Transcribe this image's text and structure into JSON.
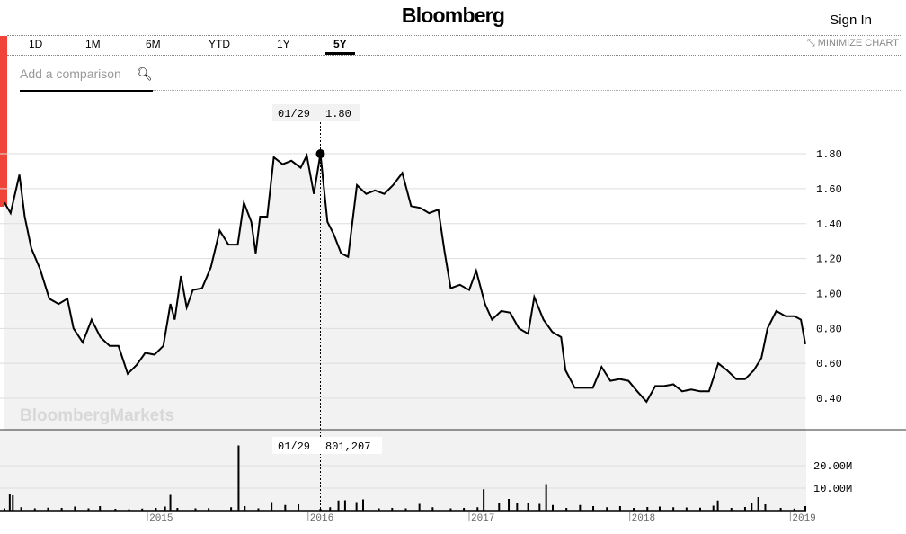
{
  "header": {
    "logo": "Bloomberg",
    "sign_in": "Sign In"
  },
  "tabs": [
    {
      "label": "1D"
    },
    {
      "label": "1M"
    },
    {
      "label": "6M"
    },
    {
      "label": "YTD"
    },
    {
      "label": "1Y"
    },
    {
      "label": "5Y",
      "active": true
    }
  ],
  "minimize_label": "MINIMIZE CHART",
  "comparison": {
    "placeholder": "Add a comparison",
    "icon": "search-icon"
  },
  "watermark": "BloombergMarkets",
  "colors": {
    "accent": "#f04438",
    "line": "#000000",
    "fill": "#f2f2f2"
  },
  "chart_data": {
    "type": "line",
    "price": {
      "yticks": [
        "1.80",
        "1.60",
        "1.40",
        "1.20",
        "1.00",
        "0.80",
        "0.60",
        "0.40"
      ],
      "ylim": [
        0.22,
        2.14
      ],
      "grid": true,
      "points": [
        [
          "2014-02-10",
          1.52
        ],
        [
          "2014-02-24",
          1.46
        ],
        [
          "2014-03-16",
          1.68
        ],
        [
          "2014-03-28",
          1.44
        ],
        [
          "2014-04-12",
          1.26
        ],
        [
          "2014-05-02",
          1.14
        ],
        [
          "2014-05-23",
          0.97
        ],
        [
          "2014-06-13",
          0.94
        ],
        [
          "2014-07-03",
          0.97
        ],
        [
          "2014-07-17",
          0.8
        ],
        [
          "2014-08-07",
          0.72
        ],
        [
          "2014-08-27",
          0.85
        ],
        [
          "2014-09-16",
          0.75
        ],
        [
          "2014-10-07",
          0.7
        ],
        [
          "2014-10-27",
          0.7
        ],
        [
          "2014-11-17",
          0.54
        ],
        [
          "2014-12-07",
          0.59
        ],
        [
          "2014-12-27",
          0.66
        ],
        [
          "2015-01-17",
          0.65
        ],
        [
          "2015-02-06",
          0.7
        ],
        [
          "2015-02-22",
          0.94
        ],
        [
          "2015-03-04",
          0.85
        ],
        [
          "2015-03-18",
          1.1
        ],
        [
          "2015-03-31",
          0.92
        ],
        [
          "2015-04-14",
          1.02
        ],
        [
          "2015-05-05",
          1.03
        ],
        [
          "2015-05-25",
          1.15
        ],
        [
          "2015-06-14",
          1.36
        ],
        [
          "2015-07-04",
          1.28
        ],
        [
          "2015-07-25",
          1.28
        ],
        [
          "2015-08-08",
          1.52
        ],
        [
          "2015-08-25",
          1.41
        ],
        [
          "2015-09-04",
          1.23
        ],
        [
          "2015-09-14",
          1.44
        ],
        [
          "2015-09-30",
          1.44
        ],
        [
          "2015-10-15",
          1.78
        ],
        [
          "2015-11-04",
          1.74
        ],
        [
          "2015-11-24",
          1.76
        ],
        [
          "2015-12-15",
          1.72
        ],
        [
          "2015-12-29",
          1.79
        ],
        [
          "2016-01-14",
          1.57
        ],
        [
          "2016-01-29",
          1.8
        ],
        [
          "2016-02-14",
          1.41
        ],
        [
          "2016-02-28",
          1.34
        ],
        [
          "2016-03-16",
          1.23
        ],
        [
          "2016-04-01",
          1.21
        ],
        [
          "2016-04-21",
          1.62
        ],
        [
          "2016-05-12",
          1.57
        ],
        [
          "2016-06-01",
          1.59
        ],
        [
          "2016-06-22",
          1.57
        ],
        [
          "2016-07-12",
          1.62
        ],
        [
          "2016-08-02",
          1.69
        ],
        [
          "2016-08-22",
          1.5
        ],
        [
          "2016-09-12",
          1.49
        ],
        [
          "2016-10-02",
          1.46
        ],
        [
          "2016-10-23",
          1.48
        ],
        [
          "2016-11-06",
          1.24
        ],
        [
          "2016-11-20",
          1.03
        ],
        [
          "2016-12-11",
          1.05
        ],
        [
          "2017-01-01",
          1.02
        ],
        [
          "2017-01-17",
          1.13
        ],
        [
          "2017-02-06",
          0.94
        ],
        [
          "2017-02-22",
          0.85
        ],
        [
          "2017-03-15",
          0.9
        ],
        [
          "2017-04-04",
          0.89
        ],
        [
          "2017-04-24",
          0.8
        ],
        [
          "2017-05-15",
          0.77
        ],
        [
          "2017-05-29",
          0.98
        ],
        [
          "2017-06-19",
          0.85
        ],
        [
          "2017-07-09",
          0.78
        ],
        [
          "2017-07-29",
          0.75
        ],
        [
          "2017-08-08",
          0.56
        ],
        [
          "2017-08-29",
          0.46
        ],
        [
          "2017-09-18",
          0.46
        ],
        [
          "2017-10-09",
          0.46
        ],
        [
          "2017-10-29",
          0.58
        ],
        [
          "2017-11-18",
          0.5
        ],
        [
          "2017-12-09",
          0.51
        ],
        [
          "2017-12-29",
          0.5
        ],
        [
          "2018-01-18",
          0.44
        ],
        [
          "2018-02-08",
          0.38
        ],
        [
          "2018-02-28",
          0.47
        ],
        [
          "2018-03-20",
          0.47
        ],
        [
          "2018-04-10",
          0.48
        ],
        [
          "2018-04-30",
          0.44
        ],
        [
          "2018-05-21",
          0.45
        ],
        [
          "2018-06-10",
          0.44
        ],
        [
          "2018-06-30",
          0.44
        ],
        [
          "2018-07-21",
          0.6
        ],
        [
          "2018-08-10",
          0.56
        ],
        [
          "2018-08-31",
          0.51
        ],
        [
          "2018-09-20",
          0.51
        ],
        [
          "2018-10-10",
          0.56
        ],
        [
          "2018-10-27",
          0.63
        ],
        [
          "2018-11-10",
          0.8
        ],
        [
          "2018-11-30",
          0.9
        ],
        [
          "2018-12-21",
          0.87
        ],
        [
          "2019-01-10",
          0.87
        ],
        [
          "2019-01-25",
          0.85
        ],
        [
          "2019-02-04",
          0.71
        ]
      ]
    },
    "volume": {
      "yticks": [
        "20.00M",
        "10.00M"
      ],
      "ylim": [
        0,
        36000000
      ],
      "points": [
        [
          "2014-02-10",
          1000000
        ],
        [
          "2014-02-22",
          7500000
        ],
        [
          "2014-03-01",
          6800000
        ],
        [
          "2014-03-20",
          1500000
        ],
        [
          "2014-04-20",
          1000000
        ],
        [
          "2014-05-20",
          1300000
        ],
        [
          "2014-06-20",
          1200000
        ],
        [
          "2014-07-20",
          1800000
        ],
        [
          "2014-08-20",
          1000000
        ],
        [
          "2014-09-15",
          2000000
        ],
        [
          "2014-10-20",
          800000
        ],
        [
          "2014-11-20",
          600000
        ],
        [
          "2014-12-20",
          900000
        ],
        [
          "2015-01-20",
          1200000
        ],
        [
          "2015-02-10",
          1800000
        ],
        [
          "2015-02-22",
          7000000
        ],
        [
          "2015-03-10",
          1200000
        ],
        [
          "2015-04-20",
          1000000
        ],
        [
          "2015-05-20",
          1100000
        ],
        [
          "2015-07-10",
          1500000
        ],
        [
          "2015-07-27",
          29000000
        ],
        [
          "2015-08-10",
          2000000
        ],
        [
          "2015-09-10",
          1000000
        ],
        [
          "2015-10-10",
          3800000
        ],
        [
          "2015-11-10",
          2500000
        ],
        [
          "2015-12-10",
          2800000
        ],
        [
          "2016-01-29",
          801207
        ],
        [
          "2016-02-20",
          1500000
        ],
        [
          "2016-03-10",
          4500000
        ],
        [
          "2016-03-25",
          4600000
        ],
        [
          "2016-04-20",
          3800000
        ],
        [
          "2016-05-05",
          5000000
        ],
        [
          "2016-06-10",
          1000000
        ],
        [
          "2016-07-10",
          1200000
        ],
        [
          "2016-08-10",
          1000000
        ],
        [
          "2016-09-10",
          3000000
        ],
        [
          "2016-10-10",
          1500000
        ],
        [
          "2016-11-20",
          1000000
        ],
        [
          "2016-12-20",
          1200000
        ],
        [
          "2017-01-20",
          1500000
        ],
        [
          "2017-02-03",
          9500000
        ],
        [
          "2017-03-10",
          3500000
        ],
        [
          "2017-04-01",
          5200000
        ],
        [
          "2017-04-20",
          3500000
        ],
        [
          "2017-05-15",
          3200000
        ],
        [
          "2017-06-10",
          3000000
        ],
        [
          "2017-06-25",
          11800000
        ],
        [
          "2017-07-10",
          2500000
        ],
        [
          "2017-08-10",
          1200000
        ],
        [
          "2017-09-10",
          2500000
        ],
        [
          "2017-10-10",
          2000000
        ],
        [
          "2017-11-10",
          1500000
        ],
        [
          "2017-12-10",
          2000000
        ],
        [
          "2018-01-10",
          1200000
        ],
        [
          "2018-02-10",
          1600000
        ],
        [
          "2018-03-10",
          1800000
        ],
        [
          "2018-04-10",
          1500000
        ],
        [
          "2018-05-10",
          1400000
        ],
        [
          "2018-06-10",
          1300000
        ],
        [
          "2018-07-10",
          2200000
        ],
        [
          "2018-07-20",
          4500000
        ],
        [
          "2018-08-20",
          1200000
        ],
        [
          "2018-09-20",
          1600000
        ],
        [
          "2018-10-05",
          3500000
        ],
        [
          "2018-10-20",
          6000000
        ],
        [
          "2018-11-05",
          2800000
        ],
        [
          "2018-12-10",
          1200000
        ],
        [
          "2019-01-10",
          900000
        ],
        [
          "2019-02-04",
          2000000
        ]
      ]
    },
    "xticks": [
      "2015",
      "2016",
      "2017",
      "2018",
      "2019"
    ],
    "xlim": [
      "2014-02-08",
      "2019-02-06"
    ],
    "crosshair": {
      "date_label": "01/29",
      "price_label": "1.80",
      "volume_label": "801,207",
      "date": "2016-01-29",
      "price": 1.8
    }
  }
}
